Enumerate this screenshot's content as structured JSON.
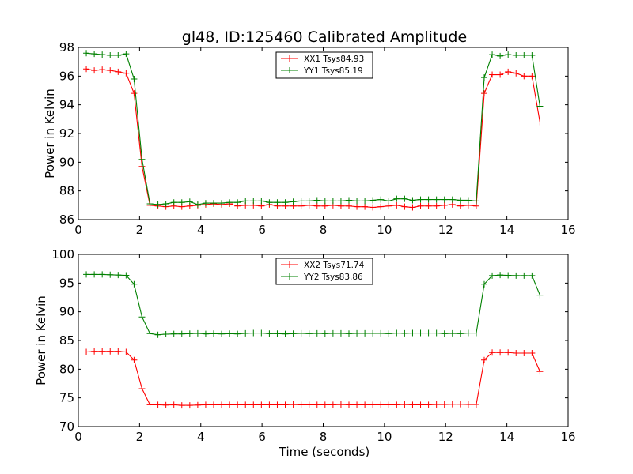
{
  "figure_title": "gl48, ID:125460 Calibrated Amplitude",
  "chart_data": [
    {
      "type": "line",
      "title": "gl48, ID:125460 Calibrated Amplitude",
      "xlabel": "",
      "ylabel": "Power in Kelvin",
      "xlim": [
        0,
        16
      ],
      "ylim": [
        86,
        98
      ],
      "xticks": [
        0,
        2,
        4,
        6,
        8,
        10,
        12,
        14,
        16
      ],
      "yticks": [
        86,
        88,
        90,
        92,
        94,
        96,
        98
      ],
      "grid": false,
      "legend_position": "top-center",
      "x": [
        0.26,
        0.52,
        0.78,
        1.04,
        1.3,
        1.56,
        1.82,
        2.08,
        2.34,
        2.6,
        2.86,
        3.12,
        3.38,
        3.64,
        3.9,
        4.16,
        4.42,
        4.68,
        4.94,
        5.2,
        5.46,
        5.72,
        5.98,
        6.24,
        6.5,
        6.76,
        7.02,
        7.28,
        7.54,
        7.8,
        8.06,
        8.32,
        8.58,
        8.84,
        9.1,
        9.36,
        9.62,
        9.88,
        10.14,
        10.4,
        10.66,
        10.92,
        11.18,
        11.44,
        11.7,
        11.96,
        12.22,
        12.48,
        12.74,
        13.0,
        13.26,
        13.52,
        13.78,
        14.04,
        14.3,
        14.56,
        14.82,
        15.08
      ],
      "series": [
        {
          "name": "XX1 Tsys84.93",
          "color": "#ff0000",
          "values": [
            96.5,
            96.4,
            96.45,
            96.4,
            96.3,
            96.2,
            94.8,
            89.7,
            87.0,
            86.95,
            86.9,
            86.95,
            86.9,
            86.95,
            87.0,
            87.05,
            87.1,
            87.05,
            87.1,
            86.95,
            87.0,
            87.0,
            86.95,
            87.05,
            86.95,
            86.95,
            86.95,
            86.95,
            87.0,
            86.95,
            86.95,
            87.0,
            86.95,
            86.95,
            86.9,
            86.9,
            86.85,
            86.9,
            86.95,
            87.0,
            86.9,
            86.85,
            86.95,
            86.95,
            86.95,
            87.0,
            87.05,
            86.95,
            87.0,
            86.95,
            94.8,
            96.1,
            96.1,
            96.3,
            96.2,
            96.0,
            96.0,
            92.8
          ]
        },
        {
          "name": "YY1 Tsys85.19",
          "color": "#008000",
          "values": [
            97.6,
            97.55,
            97.5,
            97.45,
            97.45,
            97.55,
            95.8,
            90.2,
            87.1,
            87.05,
            87.1,
            87.2,
            87.2,
            87.25,
            87.05,
            87.15,
            87.15,
            87.15,
            87.2,
            87.2,
            87.3,
            87.3,
            87.3,
            87.2,
            87.2,
            87.2,
            87.25,
            87.3,
            87.3,
            87.35,
            87.3,
            87.3,
            87.3,
            87.35,
            87.3,
            87.3,
            87.35,
            87.4,
            87.3,
            87.45,
            87.45,
            87.35,
            87.4,
            87.4,
            87.4,
            87.4,
            87.4,
            87.35,
            87.35,
            87.3,
            95.9,
            97.5,
            97.4,
            97.5,
            97.45,
            97.45,
            97.45,
            93.9
          ]
        }
      ]
    },
    {
      "type": "line",
      "title": "",
      "xlabel": "Time (seconds)",
      "ylabel": "Power in Kelvin",
      "xlim": [
        0,
        16
      ],
      "ylim": [
        70,
        100
      ],
      "xticks": [
        0,
        2,
        4,
        6,
        8,
        10,
        12,
        14,
        16
      ],
      "yticks": [
        70,
        75,
        80,
        85,
        90,
        95,
        100
      ],
      "grid": false,
      "legend_position": "top-center",
      "x": [
        0.26,
        0.52,
        0.78,
        1.04,
        1.3,
        1.56,
        1.82,
        2.08,
        2.34,
        2.6,
        2.86,
        3.12,
        3.38,
        3.64,
        3.9,
        4.16,
        4.42,
        4.68,
        4.94,
        5.2,
        5.46,
        5.72,
        5.98,
        6.24,
        6.5,
        6.76,
        7.02,
        7.28,
        7.54,
        7.8,
        8.06,
        8.32,
        8.58,
        8.84,
        9.1,
        9.36,
        9.62,
        9.88,
        10.14,
        10.4,
        10.66,
        10.92,
        11.18,
        11.44,
        11.7,
        11.96,
        12.22,
        12.48,
        12.74,
        13.0,
        13.26,
        13.52,
        13.78,
        14.04,
        14.3,
        14.56,
        14.82,
        15.08
      ],
      "series": [
        {
          "name": "XX2 Tsys71.74",
          "color": "#ff0000",
          "values": [
            83.0,
            83.1,
            83.1,
            83.1,
            83.1,
            83.0,
            81.6,
            76.6,
            73.8,
            73.8,
            73.75,
            73.8,
            73.7,
            73.7,
            73.75,
            73.8,
            73.8,
            73.8,
            73.8,
            73.8,
            73.8,
            73.8,
            73.8,
            73.8,
            73.8,
            73.8,
            73.85,
            73.8,
            73.8,
            73.8,
            73.8,
            73.8,
            73.85,
            73.8,
            73.8,
            73.8,
            73.8,
            73.8,
            73.8,
            73.8,
            73.85,
            73.8,
            73.8,
            73.8,
            73.85,
            73.85,
            73.9,
            73.9,
            73.85,
            73.85,
            81.6,
            82.9,
            82.9,
            82.9,
            82.8,
            82.8,
            82.8,
            79.6
          ]
        },
        {
          "name": "YY2 Tsys83.86",
          "color": "#008000",
          "values": [
            96.5,
            96.5,
            96.5,
            96.45,
            96.4,
            96.35,
            94.8,
            89.1,
            86.2,
            86.0,
            86.1,
            86.15,
            86.15,
            86.2,
            86.25,
            86.15,
            86.2,
            86.15,
            86.2,
            86.15,
            86.25,
            86.3,
            86.3,
            86.2,
            86.2,
            86.15,
            86.2,
            86.25,
            86.2,
            86.25,
            86.2,
            86.25,
            86.25,
            86.2,
            86.25,
            86.25,
            86.25,
            86.25,
            86.2,
            86.3,
            86.25,
            86.3,
            86.3,
            86.3,
            86.3,
            86.2,
            86.25,
            86.2,
            86.3,
            86.3,
            94.8,
            96.3,
            96.4,
            96.35,
            96.3,
            96.3,
            96.3,
            92.9
          ]
        }
      ]
    }
  ]
}
